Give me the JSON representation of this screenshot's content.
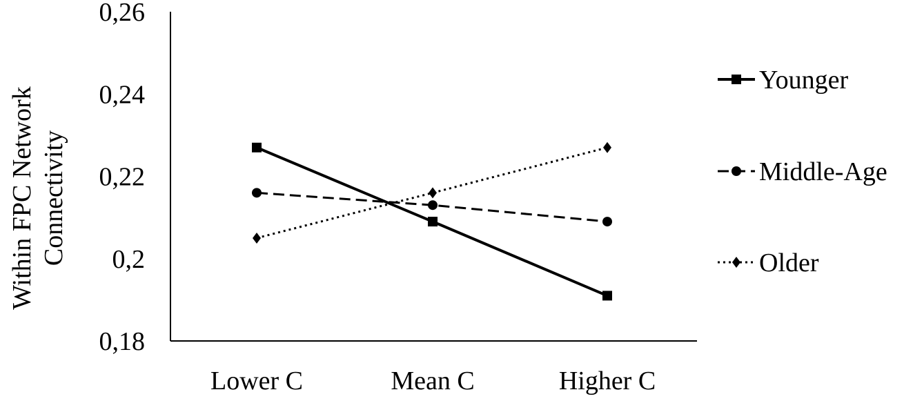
{
  "chart_data": {
    "type": "line",
    "categories": [
      "Lower C",
      "Mean C",
      "Higher C"
    ],
    "series": [
      {
        "name": "Younger",
        "values": [
          0.227,
          0.209,
          0.191
        ],
        "style": "solid",
        "marker": "square"
      },
      {
        "name": "Middle-Age",
        "values": [
          0.216,
          0.213,
          0.209
        ],
        "style": "dashed",
        "marker": "circle"
      },
      {
        "name": "Older",
        "values": [
          0.205,
          0.216,
          0.227
        ],
        "style": "dotted",
        "marker": "diamond"
      }
    ],
    "ylabel_lines": [
      "Within FPC Network",
      "Connectivity"
    ],
    "xlabel": "",
    "ylim": [
      0.18,
      0.26
    ],
    "yticks": [
      0.18,
      0.2,
      0.22,
      0.24,
      0.26
    ],
    "ytick_labels": [
      "0,18",
      "0,2",
      "0,22",
      "0,24",
      "0,26"
    ],
    "grid": false,
    "legend_position": "right",
    "line_color": "#000000"
  }
}
